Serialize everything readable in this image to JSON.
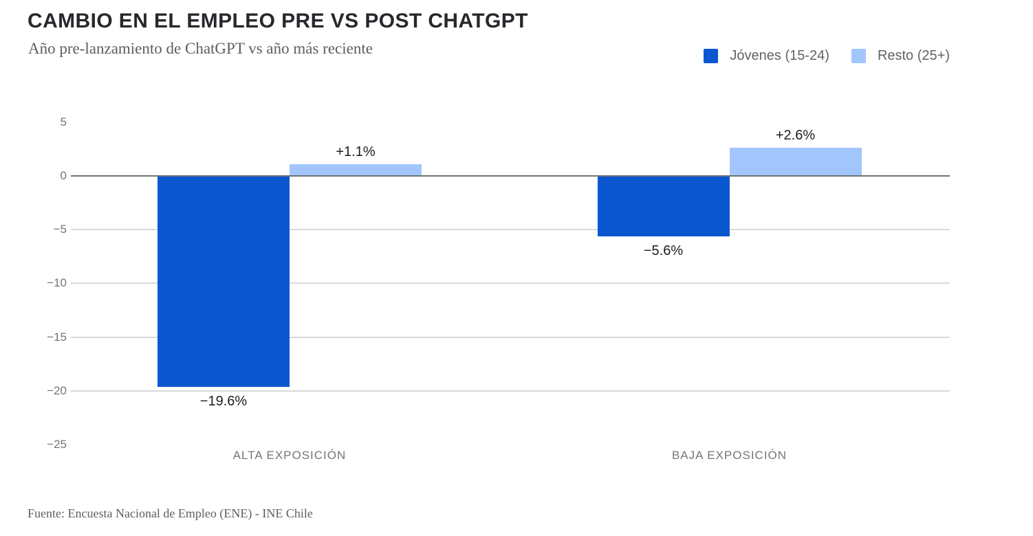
{
  "header": {
    "title": "CAMBIO EN EL EMPLEO PRE VS POST CHATGPT",
    "subtitle": "Año pre-lanzamiento de ChatGPT vs año más reciente"
  },
  "colors": {
    "jovenes_blue": "#0b57d0",
    "resto_light_blue": "#a2c5fb",
    "axis_line": "#717171",
    "gridline": "#d9d9d9",
    "text_dark": "#26282c",
    "text_gray": "#757575"
  },
  "chart_data": {
    "type": "bar",
    "title": "CAMBIO EN EL EMPLEO PRE VS POST CHATGPT",
    "subtitle": "Año pre-lanzamiento de ChatGPT vs año más reciente",
    "categories": [
      "ALTA EXPOSICIÓN",
      "BAJA EXPOSICIÓN"
    ],
    "series": [
      {
        "name": "Jóvenes (15-24)",
        "color": "#0b57d0",
        "values": [
          -19.6,
          -5.6
        ],
        "labels": [
          "−19.6%",
          "−5.6%"
        ]
      },
      {
        "name": "Resto (25+)",
        "color": "#a2c5fb",
        "values": [
          1.1,
          2.6
        ],
        "labels": [
          "+1.1%",
          "+2.6%"
        ]
      }
    ],
    "ylim": [
      -25,
      5
    ],
    "yticks": [
      {
        "label": "5",
        "value": 5,
        "line": false
      },
      {
        "label": "0",
        "value": 0,
        "line": "axis"
      },
      {
        "label": "−5",
        "value": -5,
        "line": true
      },
      {
        "label": "−10",
        "value": -10,
        "line": true
      },
      {
        "label": "−15",
        "value": -15,
        "line": true
      },
      {
        "label": "−20",
        "value": -20,
        "line": true
      },
      {
        "label": "−25",
        "value": -25,
        "line": false
      }
    ],
    "grid": "horizontal",
    "legend_position": "top-right",
    "xlabel": "",
    "ylabel": ""
  },
  "footer": {
    "source": "Fuente: Encuesta Nacional de Empleo (ENE) - INE Chile"
  }
}
